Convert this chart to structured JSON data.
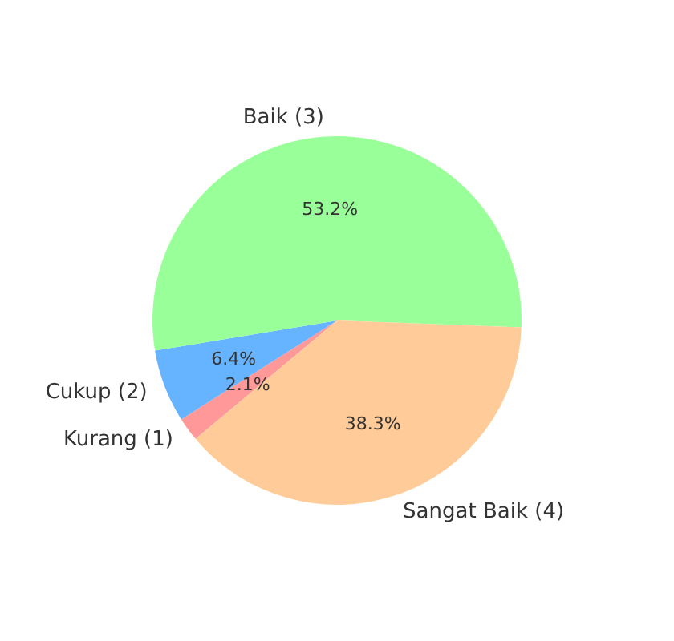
{
  "chart_data": {
    "type": "pie",
    "categories": [
      "Kurang (1)",
      "Cukup (2)",
      "Baik (3)",
      "Sangat Baik (4)"
    ],
    "values": [
      2.1,
      6.4,
      53.2,
      38.3
    ],
    "colors": [
      "#ff9999",
      "#66b3ff",
      "#99ff99",
      "#ffcc99"
    ],
    "value_labels": [
      "2.1%",
      "6.4%",
      "53.2%",
      "38.3%"
    ],
    "legend": false
  }
}
